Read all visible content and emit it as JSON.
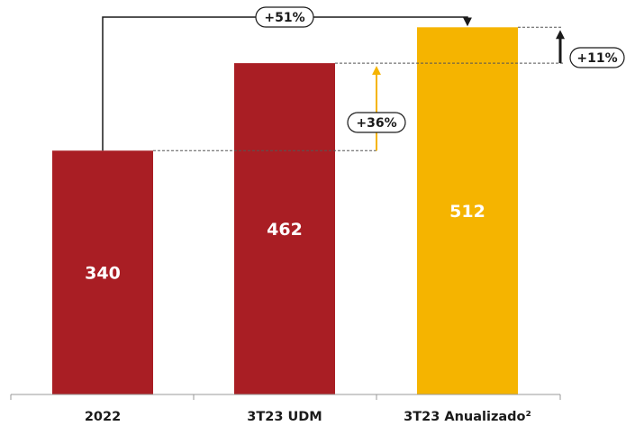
{
  "colors": {
    "bar_red": "#a91e24",
    "bar_yellow": "#f5b400",
    "arrow_yellow": "#f5b400",
    "line_black": "#1a1a1a",
    "guide_dashed": "#555555"
  },
  "chart_data": {
    "type": "bar",
    "categories": [
      "2022",
      "3T23 UDM",
      "3T23 Anualizado²"
    ],
    "values": [
      340,
      462,
      512
    ],
    "bar_colors": [
      "#a91e24",
      "#a91e24",
      "#f5b400"
    ],
    "value_labels": [
      "340",
      "462",
      "512"
    ],
    "ylim": [
      0,
      540
    ],
    "grid": false,
    "legend": "none",
    "annotations": [
      {
        "label": "+51%",
        "from": "2022",
        "to": "3T23 Anualizado²",
        "style": "elbow-arrow"
      },
      {
        "label": "+36%",
        "from": "2022",
        "to": "3T23 UDM",
        "style": "vertical-arrow",
        "color": "#f5b400"
      },
      {
        "label": "+11%",
        "from": "3T23 UDM",
        "to": "3T23 Anualizado²",
        "style": "vertical-arrow",
        "color": "#1a1a1a"
      }
    ]
  }
}
